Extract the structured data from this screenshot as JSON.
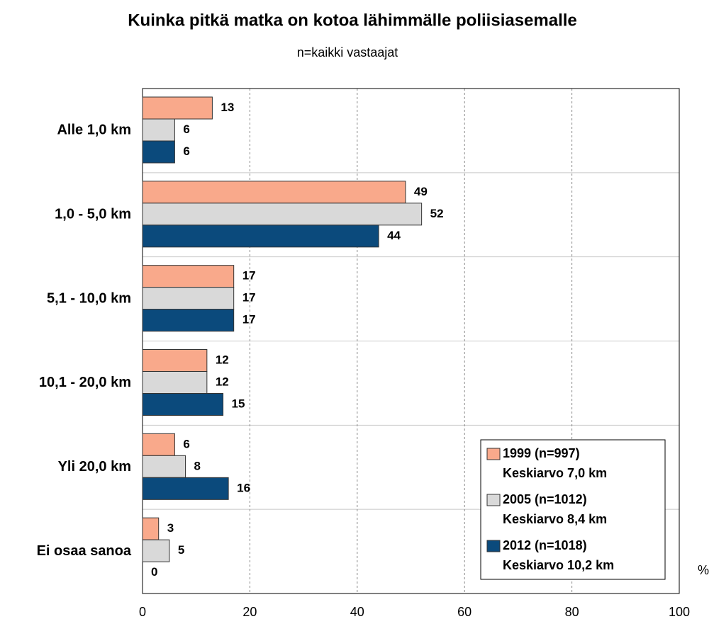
{
  "chart_data": {
    "type": "bar",
    "orientation": "horizontal",
    "title": "Kuinka pitkä matka on kotoa lähimmälle poliisiasemalle",
    "subtitle": "n=kaikki vastaajat",
    "x_label": "%",
    "categories": [
      "Alle 1,0 km",
      "1,0 - 5,0 km",
      "5,1 - 10,0 km",
      "10,1 - 20,0 km",
      "Yli 20,0 km",
      "Ei osaa sanoa"
    ],
    "series": [
      {
        "name": "1999 (n=997)",
        "note": "Keskiarvo 7,0 km",
        "color": "#f9a98b",
        "values": [
          13,
          49,
          17,
          12,
          6,
          3
        ]
      },
      {
        "name": "2005 (n=1012)",
        "note": "Keskiarvo 8,4 km",
        "color": "#d9d9d9",
        "values": [
          6,
          52,
          17,
          12,
          8,
          5
        ]
      },
      {
        "name": "2012 (n=1018)",
        "note": "Keskiarvo 10,2 km",
        "color": "#0b4a7c",
        "values": [
          6,
          44,
          17,
          15,
          16,
          0
        ]
      }
    ],
    "xlim": [
      0,
      100
    ],
    "xticks": [
      0,
      20,
      40,
      60,
      80,
      100
    ],
    "grid": true,
    "legend": "lower right"
  }
}
